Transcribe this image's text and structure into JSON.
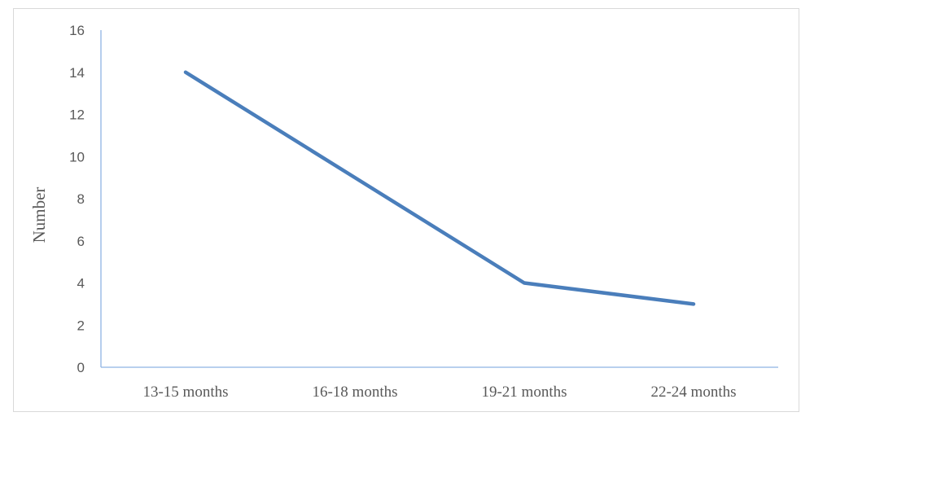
{
  "chart_data": {
    "type": "line",
    "title": "",
    "xlabel": "",
    "ylabel": "Number",
    "categories": [
      "13-15 months",
      "16-18 months",
      "19-21 months",
      "22-24 months"
    ],
    "series": [
      {
        "values": [
          14,
          9,
          4,
          3
        ],
        "color": "#4a7ebb"
      }
    ],
    "ylim": [
      0,
      16
    ],
    "yticks": [
      0,
      2,
      4,
      6,
      8,
      10,
      12,
      14,
      16
    ],
    "grid": false,
    "legend": "none",
    "axis_color": "#8eb4e3"
  }
}
